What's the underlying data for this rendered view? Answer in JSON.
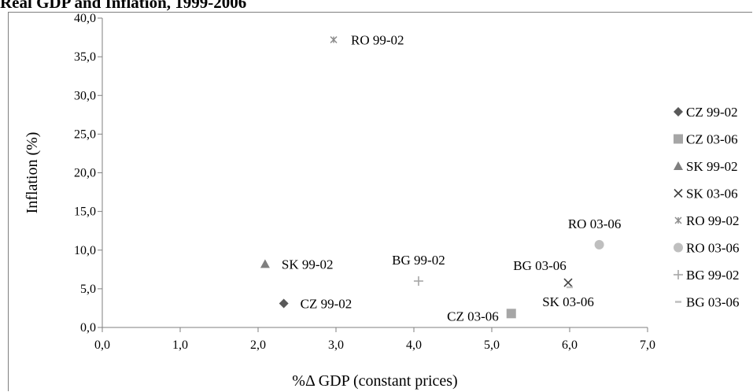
{
  "chart_data": {
    "type": "scatter",
    "title": "Real GDP and Inflation, 1999-2006",
    "xlabel": "%Δ GDP (constant prices)",
    "ylabel": "Inflation (%)",
    "xlim": [
      0,
      7
    ],
    "ylim": [
      0,
      40
    ],
    "x_ticks": [
      "0,0",
      "1,0",
      "2,0",
      "3,0",
      "4,0",
      "5,0",
      "6,0",
      "7,0"
    ],
    "y_ticks": [
      "0,0",
      "5,0",
      "10,0",
      "15,0",
      "20,0",
      "25,0",
      "30,0",
      "35,0",
      "40,0"
    ],
    "legend_position": "right",
    "grid": false,
    "series": [
      {
        "name": "CZ 99-02",
        "marker": "diamond",
        "color": "#595959",
        "x": 2.33,
        "y": 3.1,
        "label": "CZ 99-02"
      },
      {
        "name": "CZ 03-06",
        "marker": "square",
        "color": "#a6a6a6",
        "x": 5.25,
        "y": 1.8,
        "label": "CZ 03-06"
      },
      {
        "name": "SK 99-02",
        "marker": "triangle",
        "color": "#7f7f7f",
        "x": 2.09,
        "y": 8.2,
        "label": "SK 99-02"
      },
      {
        "name": "SK 03-06",
        "marker": "x",
        "color": "#404040",
        "x": 5.98,
        "y": 5.8,
        "label": "SK 03-06"
      },
      {
        "name": "RO 99-02",
        "marker": "star",
        "color": "#8c8c8c",
        "x": 2.97,
        "y": 37.2,
        "label": "RO 99-02"
      },
      {
        "name": "RO 03-06",
        "marker": "circle",
        "color": "#bfbfbf",
        "x": 6.38,
        "y": 10.7,
        "label": "RO 03-06"
      },
      {
        "name": "BG 99-02",
        "marker": "plus",
        "color": "#a6a6a6",
        "x": 4.06,
        "y": 6.0,
        "label": "BG 99-02"
      },
      {
        "name": "BG 03-06",
        "marker": "dash",
        "color": "#bfbfbf",
        "x": 6.0,
        "y": 5.2,
        "label": "BG 03-06"
      }
    ]
  }
}
